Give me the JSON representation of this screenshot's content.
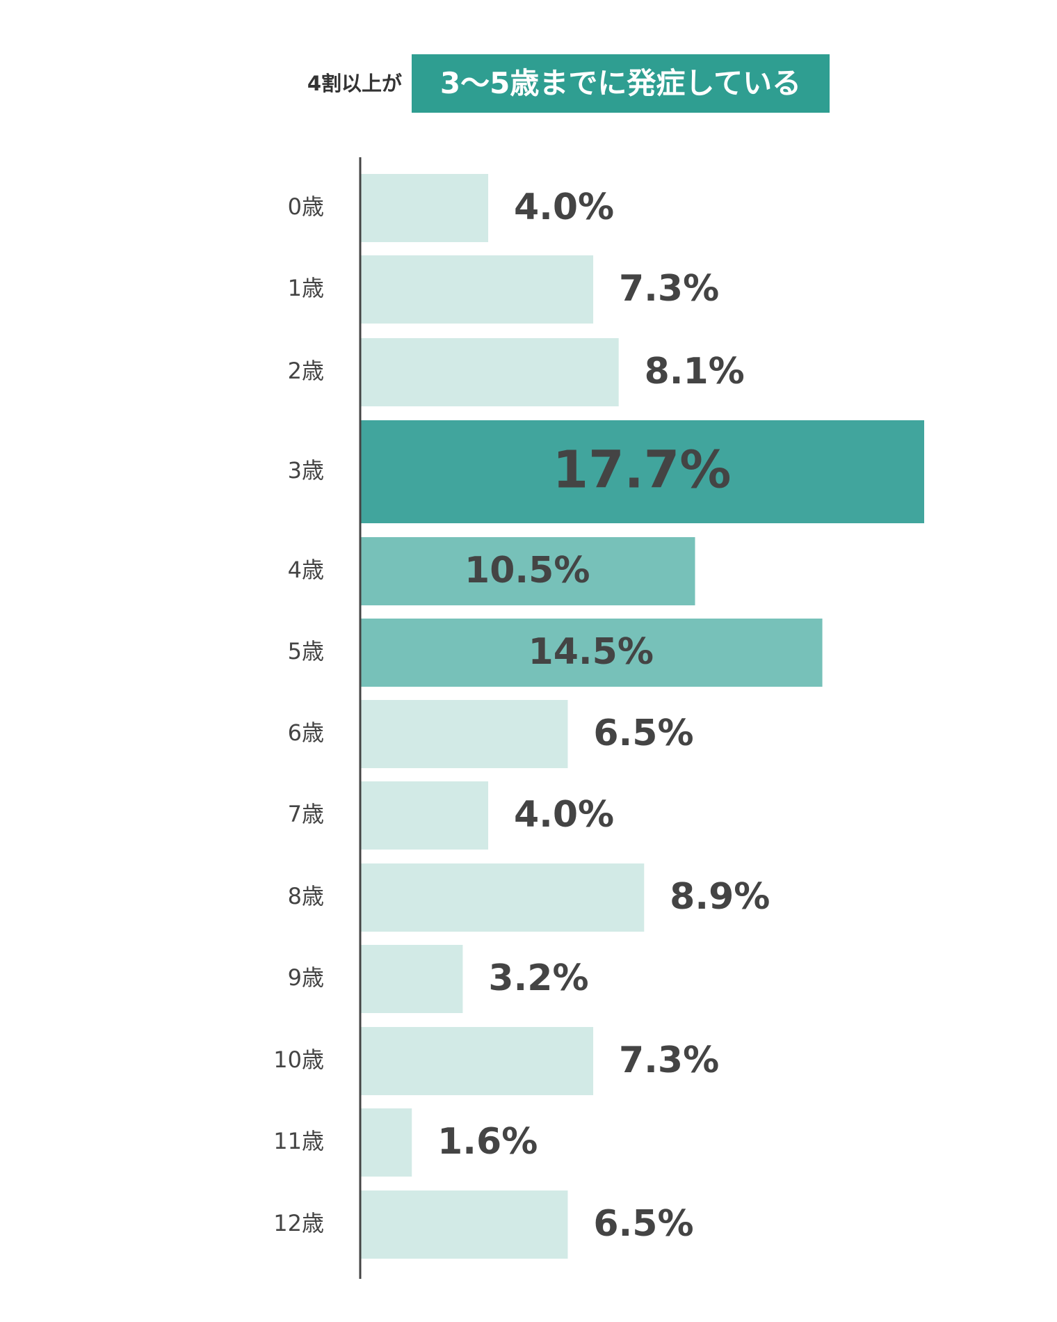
{
  "headline": {
    "lead": "4割以上が",
    "badge": "3〜5歳までに発症している"
  },
  "chart_data": {
    "type": "bar",
    "orientation": "horizontal",
    "categories": [
      "0歳",
      "1歳",
      "2歳",
      "3歳",
      "4歳",
      "5歳",
      "6歳",
      "7歳",
      "8歳",
      "9歳",
      "10歳",
      "11歳",
      "12歳"
    ],
    "values": [
      4.0,
      7.3,
      8.1,
      17.7,
      10.5,
      14.5,
      6.5,
      4.0,
      8.9,
      3.2,
      7.3,
      1.6,
      6.5
    ],
    "value_labels": [
      "4.0%",
      "7.3%",
      "8.1%",
      "17.7%",
      "10.5%",
      "14.5%",
      "6.5%",
      "4.0%",
      "8.9%",
      "3.2%",
      "7.3%",
      "1.6%",
      "6.5%"
    ],
    "unit": "%",
    "highlight": {
      "3歳": "primary",
      "4歳": "secondary",
      "5歳": "secondary"
    },
    "colors": {
      "default": "#d2eae6",
      "primary": "#41a59d",
      "secondary": "#77c1b9",
      "badge": "#2f9e91",
      "axis": "#444444",
      "label_dark": "#444444",
      "label_light": "#ffffff"
    },
    "xlim": [
      0,
      17.7
    ],
    "grid": false,
    "legend": "none"
  }
}
